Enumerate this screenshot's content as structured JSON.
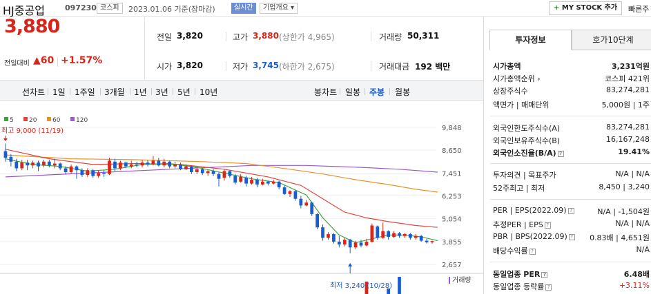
{
  "header": {
    "company": "HJ중공업",
    "code": "097230",
    "market": "코스피",
    "date": "2023.01.06  기준(장마감)",
    "realtime": "실시간",
    "company_info": "기업개요 ▾",
    "mystock": "MY STOCK 추가",
    "quick": "빠른주"
  },
  "price": {
    "current": "3,880",
    "compare_label": "전일대비",
    "compare_value": "▲60",
    "compare_pct": "+1.57%"
  },
  "details": {
    "prev_label": "전일",
    "prev": "3,820",
    "high_label": "고가",
    "high": "3,880",
    "upper_limit": "(상한가 4,965)",
    "volume_label": "거래량",
    "volume": "50,311",
    "open_label": "시가",
    "open": "3,820",
    "low_label": "저가",
    "low": "3,745",
    "lower_limit": "(하한가 2,675)",
    "amount_label": "거래대금",
    "amount": "192 백만"
  },
  "toolbar": {
    "line_label": "선차트",
    "periods": [
      "1일",
      "1주일",
      "3개월",
      "1년",
      "3년",
      "5년",
      "10년"
    ],
    "candle_label": "봉차트",
    "candle_periods": [
      "일봉",
      "주봉",
      "월봉"
    ],
    "active_candle": "주봉"
  },
  "colors": {
    "up": "#d8261a",
    "down": "#1a5dcc",
    "ma5": "#3aa43a",
    "ma20": "#e0463a",
    "ma60": "#e8922c",
    "ma120": "#9b59c9"
  },
  "chart_data": {
    "type": "candlestick",
    "legend": [
      "5",
      "20",
      "60",
      "120"
    ],
    "y_ticks": [
      "9,848",
      "8,650",
      "7,451",
      "6,253",
      "5,054",
      "3,855",
      "2,657"
    ],
    "ylim": [
      2657,
      9848
    ],
    "high_label": "최고 9,000 (11/19)",
    "low_label": "최저 3,240 (10/28)",
    "volume_label": "거래량",
    "candles": [
      {
        "o": 8600,
        "c": 8250,
        "h": 9000,
        "l": 8050
      },
      {
        "o": 8300,
        "c": 8050,
        "h": 8450,
        "l": 7800
      },
      {
        "o": 8050,
        "c": 7700,
        "h": 8200,
        "l": 7550
      },
      {
        "o": 7700,
        "c": 8000,
        "h": 8150,
        "l": 7600
      },
      {
        "o": 8000,
        "c": 7850,
        "h": 8150,
        "l": 7600
      },
      {
        "o": 7850,
        "c": 8000,
        "h": 8100,
        "l": 7700
      },
      {
        "o": 8000,
        "c": 7800,
        "h": 8100,
        "l": 7550
      },
      {
        "o": 7850,
        "c": 8050,
        "h": 8150,
        "l": 7750
      },
      {
        "o": 8050,
        "c": 7850,
        "h": 8150,
        "l": 7750
      },
      {
        "o": 7850,
        "c": 7950,
        "h": 8200,
        "l": 7700
      },
      {
        "o": 7950,
        "c": 7700,
        "h": 8000,
        "l": 7600
      },
      {
        "o": 7700,
        "c": 7500,
        "h": 7800,
        "l": 7400
      },
      {
        "o": 7500,
        "c": 7800,
        "h": 7900,
        "l": 7400
      },
      {
        "o": 7800,
        "c": 7600,
        "h": 7850,
        "l": 7150
      },
      {
        "o": 7600,
        "c": 7350,
        "h": 7700,
        "l": 7250
      },
      {
        "o": 7350,
        "c": 7600,
        "h": 7700,
        "l": 7250
      },
      {
        "o": 7600,
        "c": 7300,
        "h": 7650,
        "l": 7200
      },
      {
        "o": 7300,
        "c": 7450,
        "h": 7600,
        "l": 7200
      },
      {
        "o": 7450,
        "c": 7400,
        "h": 7600,
        "l": 7250
      },
      {
        "o": 7400,
        "c": 8100,
        "h": 8250,
        "l": 7350
      },
      {
        "o": 8050,
        "c": 7700,
        "h": 8200,
        "l": 7550
      },
      {
        "o": 7700,
        "c": 8000,
        "h": 8100,
        "l": 7600
      },
      {
        "o": 8000,
        "c": 7800,
        "h": 8050,
        "l": 7700
      },
      {
        "o": 7800,
        "c": 7900,
        "h": 8100,
        "l": 7700
      },
      {
        "o": 7900,
        "c": 7850,
        "h": 8050,
        "l": 7750
      },
      {
        "o": 7850,
        "c": 8000,
        "h": 8150,
        "l": 7750
      },
      {
        "o": 8000,
        "c": 7900,
        "h": 8150,
        "l": 7800
      },
      {
        "o": 7900,
        "c": 8100,
        "h": 8350,
        "l": 7850
      },
      {
        "o": 8100,
        "c": 7850,
        "h": 8250,
        "l": 7800
      },
      {
        "o": 7850,
        "c": 8050,
        "h": 8200,
        "l": 7750
      },
      {
        "o": 8050,
        "c": 7800,
        "h": 8100,
        "l": 7700
      },
      {
        "o": 7800,
        "c": 7900,
        "h": 8050,
        "l": 7700
      },
      {
        "o": 7900,
        "c": 7650,
        "h": 8000,
        "l": 7600
      },
      {
        "o": 7650,
        "c": 7800,
        "h": 7900,
        "l": 7600
      },
      {
        "o": 7800,
        "c": 7500,
        "h": 7850,
        "l": 7400
      },
      {
        "o": 7500,
        "c": 7650,
        "h": 7750,
        "l": 7400
      },
      {
        "o": 7650,
        "c": 7450,
        "h": 7700,
        "l": 7350
      },
      {
        "o": 7450,
        "c": 7550,
        "h": 7600,
        "l": 7300
      },
      {
        "o": 7550,
        "c": 7400,
        "h": 7650,
        "l": 7300
      },
      {
        "o": 7400,
        "c": 7150,
        "h": 7500,
        "l": 6750
      },
      {
        "o": 7200,
        "c": 7550,
        "h": 7650,
        "l": 7050
      },
      {
        "o": 7550,
        "c": 7300,
        "h": 7600,
        "l": 7200
      },
      {
        "o": 7300,
        "c": 6950,
        "h": 7400,
        "l": 6850
      },
      {
        "o": 7000,
        "c": 7250,
        "h": 7400,
        "l": 6950
      },
      {
        "o": 7200,
        "c": 6900,
        "h": 7300,
        "l": 6750
      },
      {
        "o": 6900,
        "c": 7100,
        "h": 7250,
        "l": 6850
      },
      {
        "o": 7100,
        "c": 6850,
        "h": 7200,
        "l": 6700
      },
      {
        "o": 6850,
        "c": 7000,
        "h": 7150,
        "l": 6800
      },
      {
        "o": 7000,
        "c": 6900,
        "h": 7050,
        "l": 6800
      },
      {
        "o": 6900,
        "c": 7000,
        "h": 7100,
        "l": 6850
      },
      {
        "o": 7000,
        "c": 6700,
        "h": 7050,
        "l": 6600
      },
      {
        "o": 6700,
        "c": 6350,
        "h": 6800,
        "l": 6300
      },
      {
        "o": 6350,
        "c": 6500,
        "h": 6550,
        "l": 6200
      },
      {
        "o": 6500,
        "c": 6100,
        "h": 6550,
        "l": 6000
      },
      {
        "o": 6100,
        "c": 5750,
        "h": 6250,
        "l": 5600
      },
      {
        "o": 5750,
        "c": 5900,
        "h": 6050,
        "l": 5700
      },
      {
        "o": 5900,
        "c": 5300,
        "h": 5950,
        "l": 5200
      },
      {
        "o": 5300,
        "c": 4600,
        "h": 5350,
        "l": 4500
      },
      {
        "o": 4600,
        "c": 4050,
        "h": 4750,
        "l": 3900
      },
      {
        "o": 4050,
        "c": 4250,
        "h": 4350,
        "l": 3950
      },
      {
        "o": 4250,
        "c": 3850,
        "h": 4300,
        "l": 3750
      },
      {
        "o": 3850,
        "c": 3700,
        "h": 4150,
        "l": 3550
      },
      {
        "o": 3700,
        "c": 3950,
        "h": 4050,
        "l": 3600
      },
      {
        "o": 3950,
        "c": 3550,
        "h": 4000,
        "l": 3240
      },
      {
        "o": 3550,
        "c": 3800,
        "h": 3900,
        "l": 3450
      },
      {
        "o": 3800,
        "c": 3650,
        "h": 3950,
        "l": 3550
      },
      {
        "o": 3650,
        "c": 3850,
        "h": 4000,
        "l": 3600
      },
      {
        "o": 3850,
        "c": 4700,
        "h": 4800,
        "l": 3800
      },
      {
        "o": 4650,
        "c": 4050,
        "h": 4700,
        "l": 3950
      },
      {
        "o": 4050,
        "c": 4400,
        "h": 4850,
        "l": 4000
      },
      {
        "o": 4400,
        "c": 4100,
        "h": 4450,
        "l": 3950
      },
      {
        "o": 4100,
        "c": 4300,
        "h": 4400,
        "l": 4050
      },
      {
        "o": 4300,
        "c": 4150,
        "h": 4350,
        "l": 4050
      },
      {
        "o": 4150,
        "c": 4250,
        "h": 4300,
        "l": 4050
      },
      {
        "o": 4250,
        "c": 4050,
        "h": 4300,
        "l": 3950
      },
      {
        "o": 4050,
        "c": 4150,
        "h": 4250,
        "l": 3950
      },
      {
        "o": 4150,
        "c": 3900,
        "h": 4200,
        "l": 3850
      },
      {
        "o": 3900,
        "c": 3820,
        "h": 4000,
        "l": 3750
      },
      {
        "o": 3820,
        "c": 3880,
        "h": 3900,
        "l": 3745
      }
    ],
    "ma5": [
      [
        0,
        8200
      ],
      [
        5,
        7900
      ],
      [
        10,
        7800
      ],
      [
        15,
        7550
      ],
      [
        20,
        7650
      ],
      [
        25,
        7900
      ],
      [
        30,
        7950
      ],
      [
        35,
        7750
      ],
      [
        40,
        7450
      ],
      [
        45,
        7150
      ],
      [
        50,
        6950
      ],
      [
        55,
        6300
      ],
      [
        58,
        5100
      ],
      [
        61,
        4200
      ],
      [
        64,
        3800
      ],
      [
        67,
        4000
      ],
      [
        70,
        4200
      ],
      [
        73,
        4200
      ],
      [
        76,
        4100
      ],
      [
        79,
        3900
      ]
    ],
    "ma20": [
      [
        0,
        8700
      ],
      [
        8,
        8200
      ],
      [
        16,
        7900
      ],
      [
        24,
        7950
      ],
      [
        32,
        7900
      ],
      [
        40,
        7650
      ],
      [
        48,
        7250
      ],
      [
        54,
        6800
      ],
      [
        58,
        6100
      ],
      [
        62,
        5400
      ],
      [
        66,
        5100
      ],
      [
        70,
        4900
      ],
      [
        75,
        4700
      ],
      [
        79,
        4600
      ]
    ],
    "ma60": [
      [
        0,
        8400
      ],
      [
        12,
        8200
      ],
      [
        24,
        8150
      ],
      [
        36,
        8050
      ],
      [
        44,
        7950
      ],
      [
        52,
        7650
      ],
      [
        58,
        7400
      ],
      [
        64,
        7100
      ],
      [
        70,
        6850
      ],
      [
        75,
        6600
      ],
      [
        79,
        6450
      ]
    ],
    "ma120": [
      [
        0,
        7250
      ],
      [
        15,
        7450
      ],
      [
        30,
        7650
      ],
      [
        45,
        7850
      ],
      [
        55,
        7850
      ],
      [
        65,
        7750
      ],
      [
        72,
        7650
      ],
      [
        79,
        7500
      ]
    ],
    "volume_visible": [
      0,
      0,
      0,
      0,
      0,
      0,
      0,
      0,
      0,
      0,
      0,
      0,
      0,
      0,
      0,
      0,
      0,
      0,
      0,
      0,
      0,
      0,
      0,
      0,
      0,
      0,
      0,
      0,
      0,
      0,
      0,
      0,
      0,
      0,
      0,
      0,
      0,
      0,
      0,
      0,
      0,
      0,
      0,
      0,
      0,
      0,
      0,
      0,
      0,
      0,
      0,
      0,
      0,
      0,
      0,
      0,
      0,
      0,
      0,
      0,
      0,
      0,
      0,
      0,
      0,
      0,
      18,
      0,
      0,
      0,
      8,
      0,
      25,
      0,
      0,
      0,
      0,
      0,
      0,
      0
    ]
  },
  "panel": {
    "tab1": "투자정보",
    "tab2": "호가10단계",
    "rows": [
      {
        "l": "시가총액",
        "r": "3,231억원",
        "bold": true
      },
      {
        "l": "시가총액순위 ›",
        "r": "코스피 421위"
      },
      {
        "l": "상장주식수",
        "r": "83,274,281"
      },
      {
        "l": "액면가 | 매매단위",
        "r": "5,000원 | 1주"
      },
      {
        "l": "외국인한도주식수(A)",
        "r": "83,274,281"
      },
      {
        "l": "외국인보유주식수(B)",
        "r": "16,167,248"
      },
      {
        "l": "외국인소진율(B/A)",
        "r": "19.41%",
        "bold": true
      },
      {
        "l": "투자의견 | 목표주가",
        "r": "N/A | N/A"
      },
      {
        "l": "52주최고 | 최저",
        "r": "8,450 | 3,240"
      },
      {
        "l": "PER | EPS(2022.09)",
        "r": "N/A | -1,504원"
      },
      {
        "l": "추정PER | EPS",
        "r": "N/A | N/A"
      },
      {
        "l": "PBR | BPS(2022.09)",
        "r": "0.83배 | 4,651원"
      },
      {
        "l": "배당수익률",
        "r": "N/A"
      },
      {
        "l": "동일업종 PER",
        "r": "6.48배",
        "bold": true
      },
      {
        "l": "동일업종 등락률",
        "r": "+3.11%",
        "red": true
      }
    ]
  }
}
